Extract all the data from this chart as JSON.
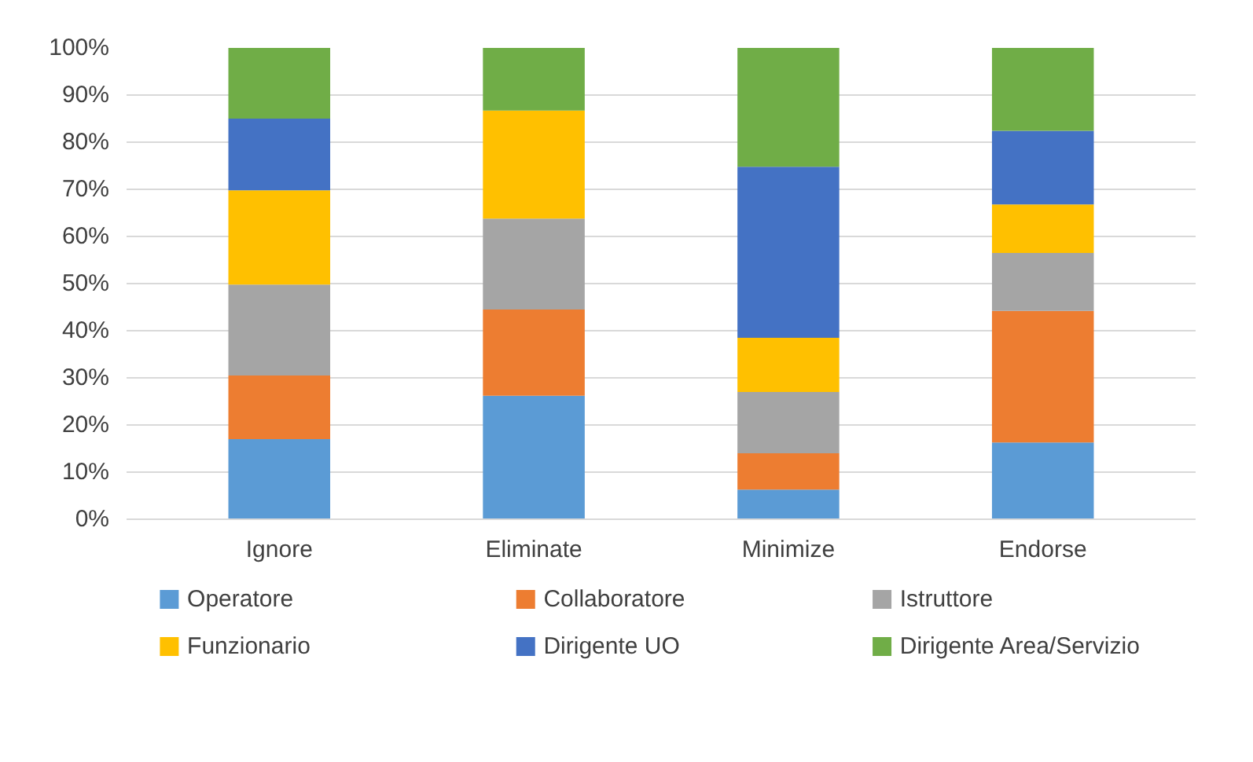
{
  "chart_data": {
    "type": "bar",
    "stacked": true,
    "categories": [
      "Ignore",
      "Eliminate",
      "Minimize",
      "Endorse"
    ],
    "series": [
      {
        "name": "Operatore",
        "color": "#5b9bd5",
        "values": [
          17,
          26.2,
          6.3,
          16.3
        ]
      },
      {
        "name": "Collaboratore",
        "color": "#ed7d31",
        "values": [
          13.5,
          18.3,
          7.7,
          27.9
        ]
      },
      {
        "name": "Istruttore",
        "color": "#a5a5a5",
        "values": [
          19.3,
          19.3,
          13,
          12.3
        ]
      },
      {
        "name": "Funzionario",
        "color": "#ffc000",
        "values": [
          20,
          22.9,
          11.5,
          10.3
        ]
      },
      {
        "name": "Dirigente UO",
        "color": "#4472c4",
        "values": [
          15.2,
          0,
          36.3,
          15.6
        ]
      },
      {
        "name": "Dirigente Area/Servizio",
        "color": "#70ad47",
        "values": [
          15,
          13.3,
          25.2,
          17.6
        ]
      }
    ],
    "ylim": [
      0,
      100
    ],
    "yticks": [
      {
        "value": 0,
        "label": "0%"
      },
      {
        "value": 10,
        "label": "10%"
      },
      {
        "value": 20,
        "label": "20%"
      },
      {
        "value": 30,
        "label": "30%"
      },
      {
        "value": 40,
        "label": "40%"
      },
      {
        "value": 50,
        "label": "50%"
      },
      {
        "value": 60,
        "label": "60%"
      },
      {
        "value": 70,
        "label": "70%"
      },
      {
        "value": 80,
        "label": "80%"
      },
      {
        "value": 90,
        "label": "90%"
      },
      {
        "value": 100,
        "label": "100%"
      }
    ],
    "grid": "y",
    "legend": "bottom"
  }
}
